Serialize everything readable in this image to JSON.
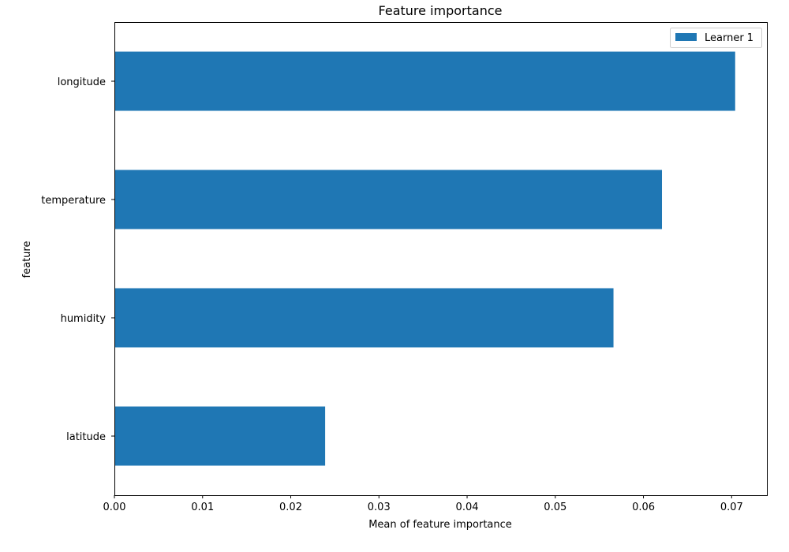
{
  "chart_data": {
    "type": "bar",
    "orientation": "horizontal",
    "title": "Feature importance",
    "xlabel": "Mean of feature importance",
    "ylabel": "feature",
    "categories": [
      "latitude",
      "humidity",
      "temperature",
      "longitude"
    ],
    "series": [
      {
        "name": "Learner 1",
        "values": [
          0.0239,
          0.0566,
          0.0621,
          0.0704
        ],
        "color": "#1f77b4"
      }
    ],
    "xlim": [
      0.0,
      0.074
    ],
    "xticks": [
      0.0,
      0.01,
      0.02,
      0.03,
      0.04,
      0.05,
      0.06,
      0.07
    ],
    "xtick_labels": [
      "0.00",
      "0.01",
      "0.02",
      "0.03",
      "0.04",
      "0.05",
      "0.06",
      "0.07"
    ],
    "grid": false,
    "legend_position": "upper right"
  }
}
